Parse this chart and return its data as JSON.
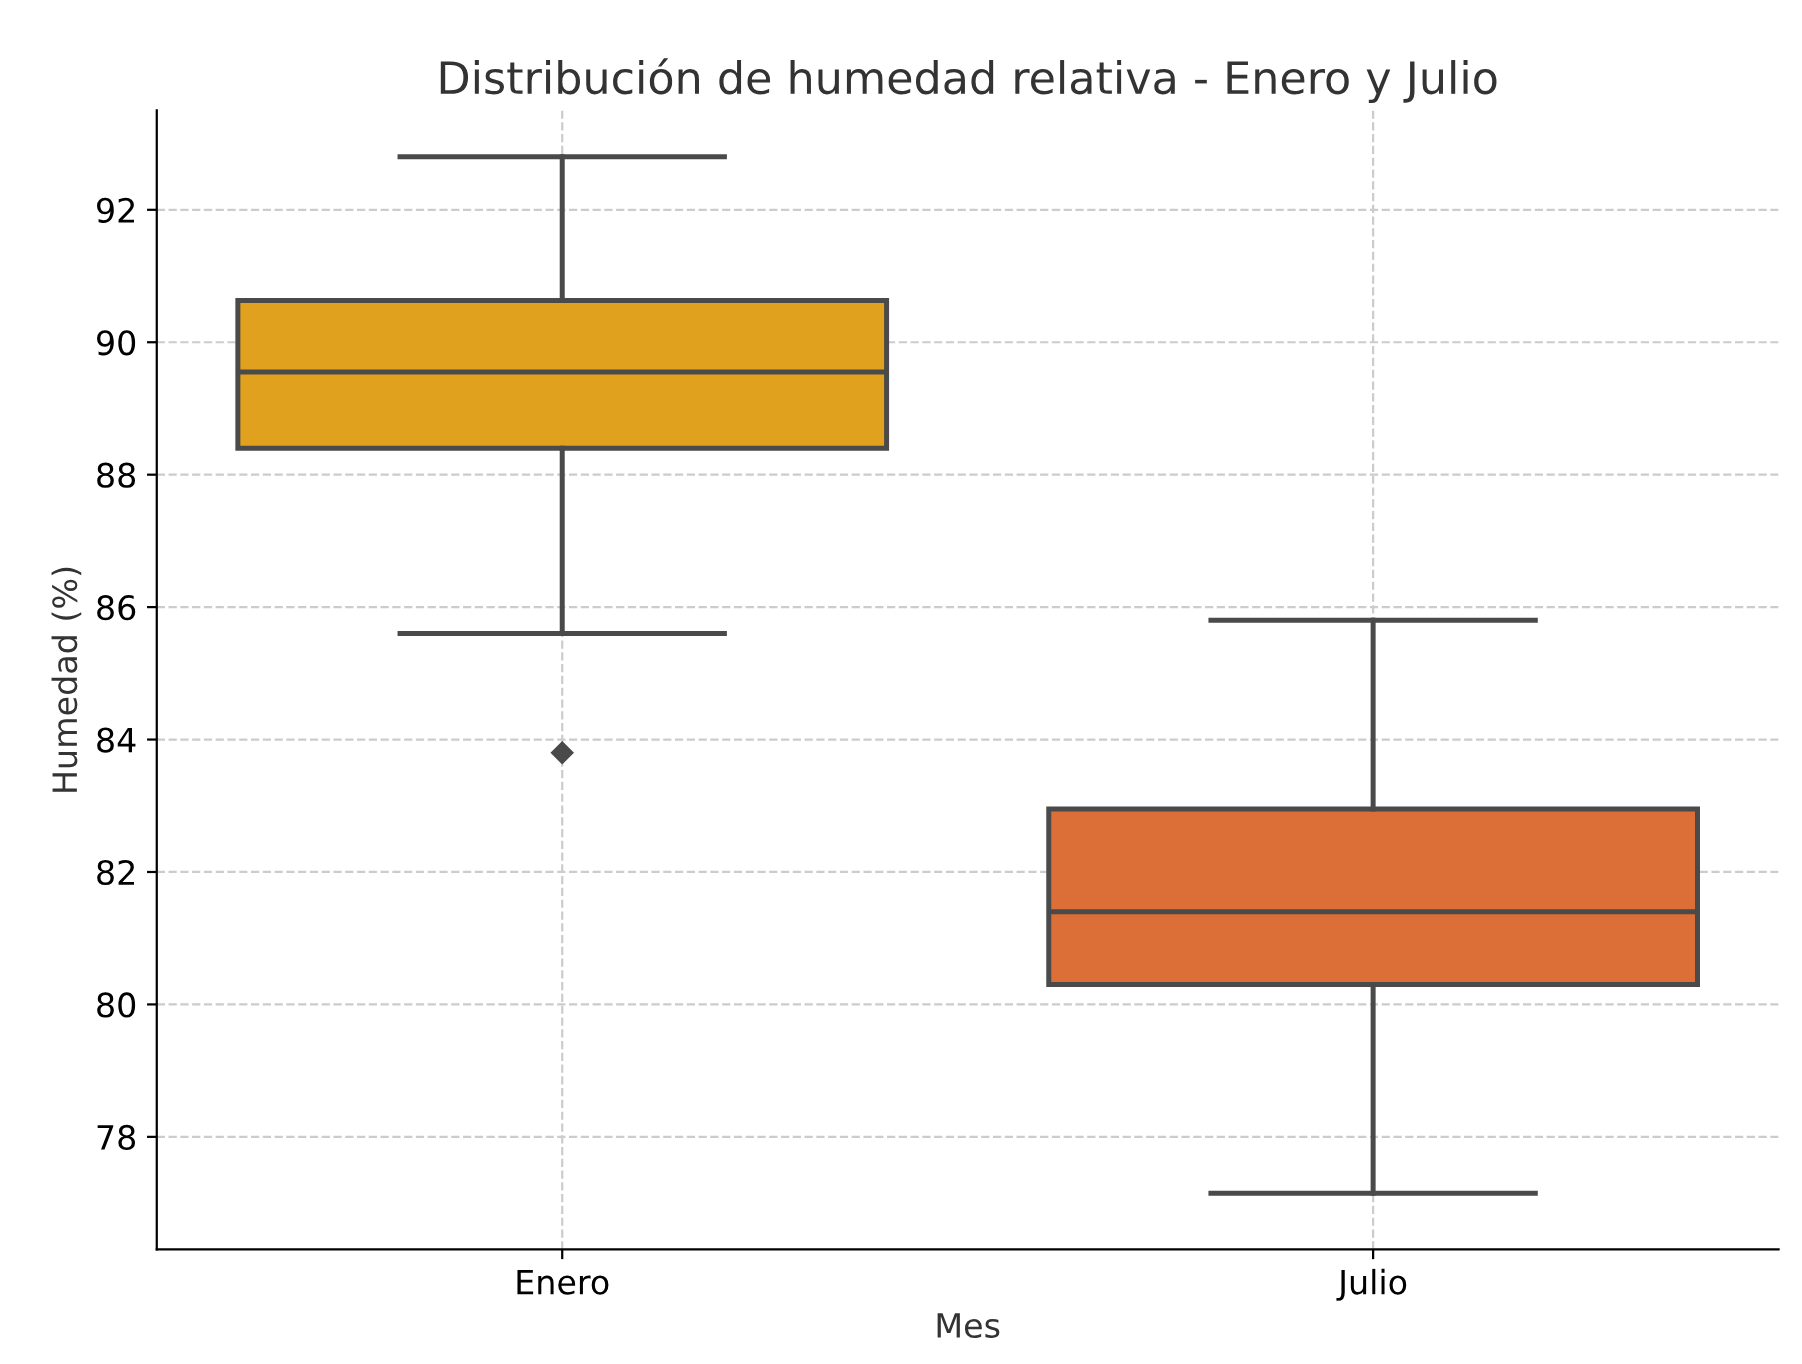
{
  "chart_data": {
    "type": "box",
    "title": "Distribución de humedad relativa - Enero y Julio",
    "xlabel": "Mes",
    "ylabel": "Humedad (%)",
    "categories": [
      "Enero",
      "Julio"
    ],
    "colors": [
      "#e0a21e",
      "#dc6e38"
    ],
    "boxes": [
      {
        "low": 85.6,
        "q1": 88.4,
        "median": 89.55,
        "q3": 90.63,
        "high": 92.8,
        "outliers": [
          83.8
        ]
      },
      {
        "low": 77.15,
        "q1": 80.3,
        "median": 81.4,
        "q3": 82.95,
        "high": 85.8
      }
    ],
    "ylim": [
      76.3,
      93.5
    ],
    "yticks": [
      78,
      80,
      82,
      84,
      86,
      88,
      90,
      92
    ],
    "grid": true,
    "marker": "diamond"
  }
}
